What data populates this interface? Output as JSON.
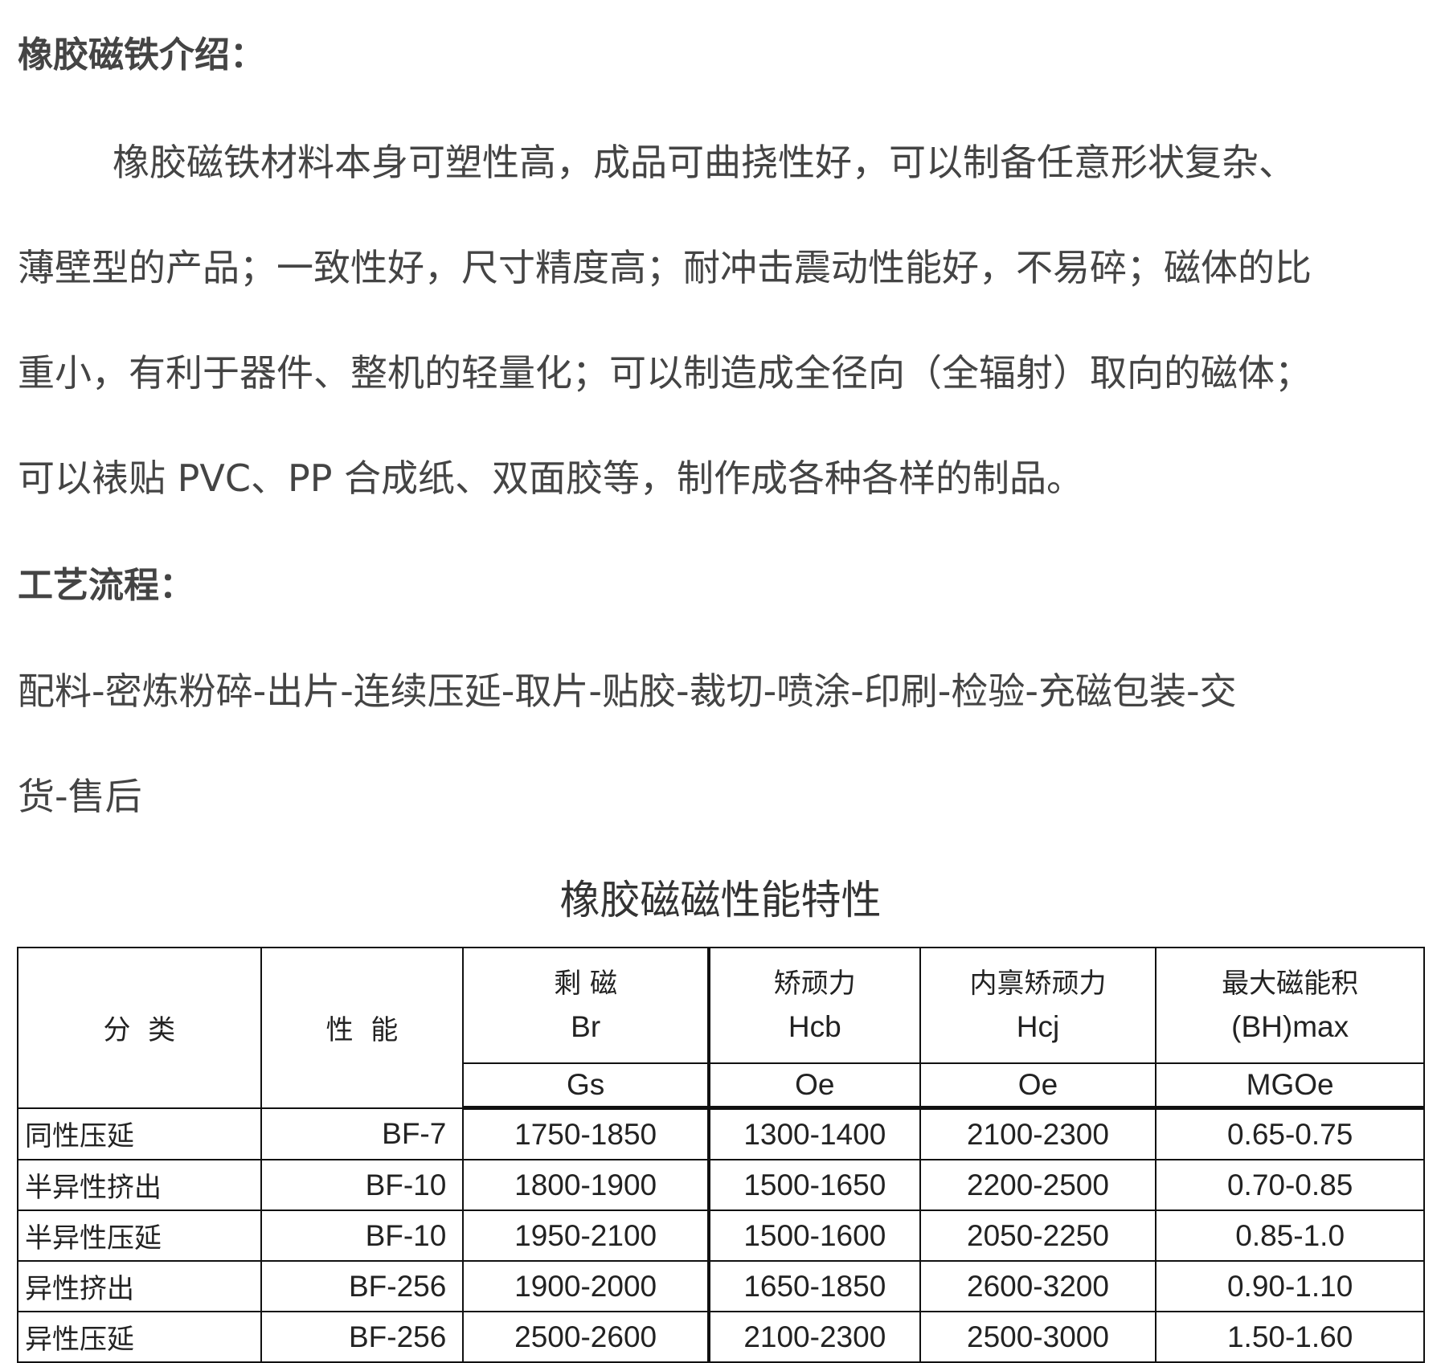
{
  "intro": {
    "heading": "橡胶磁铁介绍：",
    "lines": [
      "橡胶磁铁材料本身可塑性高，成品可曲挠性好，可以制备任意形状复杂、",
      "薄壁型的产品；一致性好，尺寸精度高；耐冲击震动性能好，不易碎；磁体的比",
      "重小，有利于器件、整机的轻量化；可以制造成全径向（全辐射）取向的磁体；",
      "可以裱贴 PVC、PP 合成纸、双面胶等，制作成各种各样的制品。"
    ]
  },
  "process": {
    "heading": "工艺流程：",
    "lines": [
      "配料-密炼粉碎-出片-连续压延-取片-贴胶-裁切-喷涂-印刷-检验-充磁包装-交",
      "货-售后"
    ]
  },
  "table": {
    "title": "橡胶磁磁性能特性",
    "headers": {
      "category": "分  类",
      "grade": "性  能",
      "br": {
        "cn": "剩 磁",
        "sym": "Br",
        "unit": "Gs"
      },
      "hcb": {
        "cn": "矫顽力",
        "sym": "Hcb",
        "unit": "Oe"
      },
      "hcj": {
        "cn": "内禀矫顽力",
        "sym": "Hcj",
        "unit": "Oe"
      },
      "bh": {
        "cn": "最大磁能积",
        "sym": "(BH)max",
        "unit": "MGOe"
      }
    },
    "rows": [
      {
        "category": "同性压延",
        "grade": "BF-7",
        "br": "1750-1850",
        "hcb": "1300-1400",
        "hcj": "2100-2300",
        "bh": "0.65-0.75"
      },
      {
        "category": "半异性挤出",
        "grade": "BF-10",
        "br": "1800-1900",
        "hcb": "1500-1650",
        "hcj": "2200-2500",
        "bh": "0.70-0.85"
      },
      {
        "category": "半异性压延",
        "grade": "BF-10",
        "br": "1950-2100",
        "hcb": "1500-1600",
        "hcj": "2050-2250",
        "bh": "0.85-1.0"
      },
      {
        "category": "异性挤出",
        "grade": "BF-256",
        "br": "1900-2000",
        "hcb": "1650-1850",
        "hcj": "2600-3200",
        "bh": "0.90-1.10"
      },
      {
        "category": "异性压延",
        "grade": "BF-256",
        "br": "2500-2600",
        "hcb": "2100-2300",
        "hcj": "2500-3000",
        "bh": "1.50-1.60"
      }
    ]
  }
}
